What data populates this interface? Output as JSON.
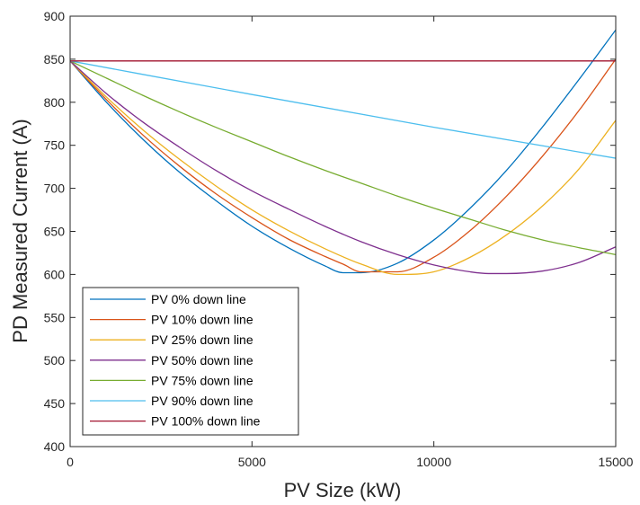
{
  "chart_data": {
    "type": "line",
    "title": "",
    "xlabel": "PV Size (kW)",
    "ylabel": "PD Measured Current (A)",
    "xlim": [
      0,
      15000
    ],
    "ylim": [
      400,
      900
    ],
    "xticks": [
      0,
      5000,
      10000,
      15000
    ],
    "yticks": [
      400,
      450,
      500,
      550,
      600,
      650,
      700,
      750,
      800,
      850,
      900
    ],
    "grid": false,
    "legend_position": "bottom-left",
    "series": [
      {
        "name": "PV 0% down line",
        "color": "#0072BD",
        "x": [
          0,
          1000,
          2000,
          3000,
          4000,
          5000,
          6000,
          7000,
          7500,
          8000,
          9000,
          10000,
          11000,
          12000,
          13000,
          14000,
          15000
        ],
        "y": [
          848,
          800,
          757,
          719,
          686,
          656,
          631,
          610,
          602,
          602,
          613,
          640,
          677,
          721,
          772,
          827,
          884
        ]
      },
      {
        "name": "PV 10% down line",
        "color": "#D95319",
        "x": [
          0,
          1000,
          2000,
          3000,
          4000,
          5000,
          6000,
          7000,
          7500,
          8000,
          9000,
          10000,
          11000,
          12000,
          13000,
          14000,
          15000
        ],
        "y": [
          848,
          803,
          762,
          726,
          694,
          666,
          641,
          621,
          612,
          603,
          603,
          620,
          651,
          691,
          738,
          791,
          850
        ]
      },
      {
        "name": "PV 25% down line",
        "color": "#EDB120",
        "x": [
          0,
          1000,
          2000,
          3000,
          4000,
          5000,
          6000,
          7000,
          8000,
          9000,
          10000,
          11000,
          12000,
          13000,
          14000,
          15000
        ],
        "y": [
          848,
          806,
          768,
          734,
          703,
          675,
          651,
          630,
          612,
          600,
          603,
          620,
          646,
          680,
          723,
          779
        ]
      },
      {
        "name": "PV 50% down line",
        "color": "#7E2F8E",
        "x": [
          0,
          1000,
          2000,
          3000,
          4000,
          5000,
          6000,
          7000,
          8000,
          9000,
          10000,
          11000,
          11500,
          12000,
          13000,
          14000,
          15000
        ],
        "y": [
          848,
          810,
          777,
          748,
          721,
          697,
          676,
          656,
          638,
          623,
          611,
          603,
          601,
          601,
          604,
          614,
          632
        ]
      },
      {
        "name": "PV 75% down line",
        "color": "#77AC30",
        "x": [
          0,
          1000,
          2000,
          3000,
          4000,
          5000,
          6000,
          7000,
          8000,
          9000,
          10000,
          11000,
          12000,
          13000,
          14000,
          15000
        ],
        "y": [
          848,
          828,
          808,
          789,
          771,
          754,
          737,
          721,
          706,
          691,
          677,
          664,
          651,
          640,
          631,
          623
        ]
      },
      {
        "name": "PV 90% down line",
        "color": "#4DBEEE",
        "x": [
          0,
          5000,
          10000,
          15000
        ],
        "y": [
          848,
          809,
          771,
          735
        ]
      },
      {
        "name": "PV 100% down line",
        "color": "#A2142F",
        "x": [
          0,
          15000
        ],
        "y": [
          848,
          848
        ]
      }
    ]
  }
}
